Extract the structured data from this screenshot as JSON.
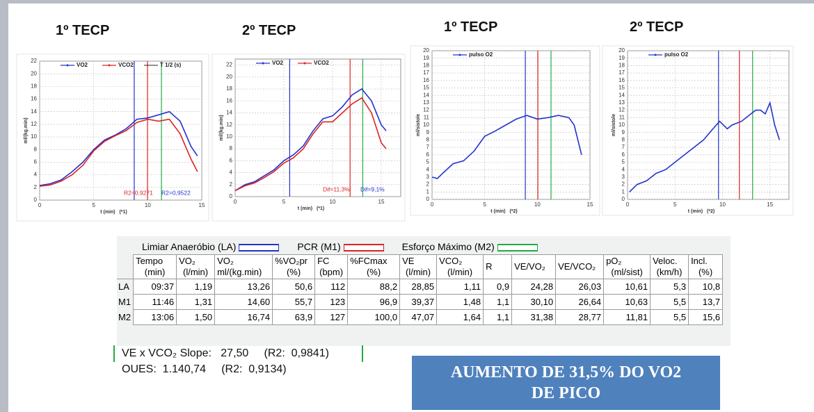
{
  "headings": [
    "1º TECP",
    "2º TECP",
    "1º TECP",
    "2º TECP"
  ],
  "chart_data": [
    {
      "type": "line",
      "y_label": "ml/(kg.min)",
      "x_label": "t (min)   (*1)",
      "x": [
        0,
        1,
        2,
        3,
        4,
        5,
        6,
        7,
        8,
        9,
        10,
        11,
        12,
        13,
        14,
        14.6
      ],
      "series": [
        {
          "name": "VO2",
          "color": "#2233cc",
          "values": [
            2.3,
            2.6,
            3.2,
            4.5,
            6,
            8,
            9.5,
            10.3,
            11.3,
            12.8,
            13,
            13.5,
            14,
            12.5,
            8.5,
            7
          ]
        },
        {
          "name": "VCO2",
          "color": "#dd2222",
          "values": [
            2.2,
            2.4,
            3,
            4,
            5.5,
            7.8,
            9.3,
            10.2,
            11,
            12.3,
            12.8,
            12.5,
            12.8,
            10.5,
            6.5,
            4.5
          ]
        }
      ],
      "t_half_legend": "T 1/2 (s)",
      "vlines": [
        {
          "value": 8.75,
          "color": "#2233cc"
        },
        {
          "value": 9.98,
          "color": "#dd2222"
        },
        {
          "value": 11.27,
          "color": "#22aa44"
        }
      ],
      "annotations": [
        {
          "text": "R2=0,9271",
          "color": "#dd2222"
        },
        {
          "text": "R2=0,9522",
          "color": "#2233cc"
        }
      ],
      "xlim": [
        0,
        15
      ],
      "ylim": [
        0,
        22
      ],
      "xticks": [
        0,
        5,
        10,
        15
      ],
      "yticks": [
        0,
        2,
        4,
        6,
        8,
        10,
        12,
        14,
        16,
        18,
        20,
        22
      ],
      "grid": true
    },
    {
      "type": "line",
      "y_label": "ml/(kg.min)",
      "x_label": "t (min)   (*1)",
      "x": [
        0,
        1,
        2,
        3,
        4,
        5,
        6,
        7,
        8,
        9,
        10,
        11,
        12,
        13,
        14,
        15,
        15.5
      ],
      "series": [
        {
          "name": "VO2",
          "color": "#2233cc",
          "values": [
            1,
            2,
            2.5,
            3.5,
            4.5,
            6,
            7,
            8.5,
            11,
            13,
            13.5,
            15,
            17,
            18,
            16,
            12,
            11
          ]
        },
        {
          "name": "VCO2",
          "color": "#dd2222",
          "values": [
            1,
            1.8,
            2.3,
            3.2,
            4.2,
            5.6,
            6.5,
            8,
            10.5,
            12.5,
            12.5,
            14,
            15.5,
            16.5,
            14,
            9,
            8
          ]
        }
      ],
      "vlines": [
        {
          "value": 5.6,
          "color": "#2233cc"
        },
        {
          "value": 11.8,
          "color": "#dd2222"
        },
        {
          "value": 13.1,
          "color": "#22aa44"
        }
      ],
      "annotations": [
        {
          "text": "Dif=11,3%",
          "color": "#dd2222"
        },
        {
          "text": "Dif=9,1%",
          "color": "#2233cc"
        }
      ],
      "xlim": [
        0,
        17
      ],
      "ylim": [
        0,
        23
      ],
      "xticks": [
        0,
        5,
        10,
        15
      ],
      "yticks": [
        0,
        2,
        4,
        6,
        8,
        10,
        12,
        14,
        16,
        18,
        20,
        22
      ],
      "grid": true
    },
    {
      "type": "line",
      "y_label": "ml/sistole",
      "x_label": "t (min)   (*2)",
      "x": [
        0,
        0.5,
        1,
        2,
        3,
        4,
        5,
        6,
        7,
        8,
        9,
        10,
        11,
        12,
        13,
        13.5,
        14.2
      ],
      "series": [
        {
          "name": "pulso O2",
          "color": "#2233cc",
          "values": [
            3,
            2.8,
            3.5,
            4.8,
            5.2,
            6.5,
            8.5,
            9.2,
            10,
            10.8,
            11.3,
            10.8,
            11,
            11.3,
            11,
            10,
            6
          ]
        }
      ],
      "vlines": [
        {
          "value": 8.86,
          "color": "#2233cc"
        },
        {
          "value": 10.05,
          "color": "#dd2222"
        },
        {
          "value": 11.3,
          "color": "#22aa44"
        }
      ],
      "xlim": [
        0,
        15
      ],
      "ylim": [
        0,
        20
      ],
      "xticks": [
        0,
        5,
        10,
        15
      ],
      "yticks": [
        0,
        1,
        2,
        3,
        4,
        5,
        6,
        7,
        8,
        9,
        10,
        11,
        12,
        13,
        14,
        15,
        16,
        17,
        18,
        19,
        20
      ],
      "grid": true
    },
    {
      "type": "line",
      "y_label": "ml/sistole",
      "x_label": "t (min)   (*2)",
      "x": [
        0.2,
        1,
        2,
        3,
        4,
        5,
        6,
        7,
        8,
        9,
        9.7,
        10.5,
        11,
        12,
        13,
        13.5,
        14,
        14.5,
        15,
        15.5,
        16
      ],
      "series": [
        {
          "name": "pulso O2",
          "color": "#2233cc",
          "values": [
            1,
            2,
            2.5,
            3.5,
            4,
            5,
            6,
            7,
            8,
            9.5,
            10.5,
            9.5,
            10,
            10.5,
            11.5,
            12,
            12,
            11.5,
            13,
            10,
            8
          ]
        }
      ],
      "vlines": [
        {
          "value": 9.58,
          "color": "#2233cc"
        },
        {
          "value": 11.78,
          "color": "#dd2222"
        },
        {
          "value": 13.17,
          "color": "#22aa44"
        }
      ],
      "xlim": [
        0,
        17
      ],
      "ylim": [
        0,
        20
      ],
      "xticks": [
        0,
        5,
        10,
        15
      ],
      "yticks": [
        0,
        1,
        2,
        3,
        4,
        5,
        6,
        7,
        8,
        9,
        10,
        11,
        12,
        13,
        14,
        15,
        16,
        17,
        18,
        19,
        20
      ],
      "grid": true
    }
  ],
  "table": {
    "legend": [
      {
        "label": "Limiar Anaeróbio (LA)",
        "color": "#2233cc"
      },
      {
        "label": "PCR (M1)",
        "color": "#dd2222"
      },
      {
        "label": "Esforço Máximo (M2)",
        "color": "#22aa44"
      }
    ],
    "columns": [
      [
        "Tempo",
        "(min)"
      ],
      [
        "VO₂",
        "(l/min)"
      ],
      [
        "VO₂",
        "ml/(kg.min)"
      ],
      [
        "%VO₂pr",
        "(%)"
      ],
      [
        "FC",
        "(bpm)"
      ],
      [
        "%FCmax",
        "(%)"
      ],
      [
        "VE",
        "(l/min)"
      ],
      [
        "VCO₂",
        "(l/min)"
      ],
      [
        "R"
      ],
      [
        "VE/VO₂"
      ],
      [
        "VE/VCO₂"
      ],
      [
        "pO₂",
        "(ml/sist)"
      ],
      [
        "Veloc.",
        "(km/h)"
      ],
      [
        "Incl.",
        "(%)"
      ]
    ],
    "rows": [
      [
        "LA",
        "09:37",
        "1,19",
        "13,26",
        "50,6",
        "112",
        "88,2",
        "28,85",
        "1,11",
        "0,9",
        "24,28",
        "26,03",
        "10,61",
        "5,3",
        "10,8"
      ],
      [
        "M1",
        "11:46",
        "1,31",
        "14,60",
        "55,7",
        "123",
        "96,9",
        "39,37",
        "1,48",
        "1,1",
        "30,10",
        "26,64",
        "10,63",
        "5,5",
        "13,7"
      ],
      [
        "M2",
        "13:06",
        "1,50",
        "16,74",
        "63,9",
        "127",
        "100,0",
        "47,07",
        "1,64",
        "1,1",
        "31,38",
        "28,77",
        "11,81",
        "5,5",
        "15,6"
      ]
    ]
  },
  "notes": [
    "VE x VCO₂ Slope:   27,50     (R2:  0,9841)",
    "OUES:  1.140,74     (R2:  0,9134)"
  ],
  "banner": "AUMENTO DE 31,5% DO VO2 DE PICO"
}
